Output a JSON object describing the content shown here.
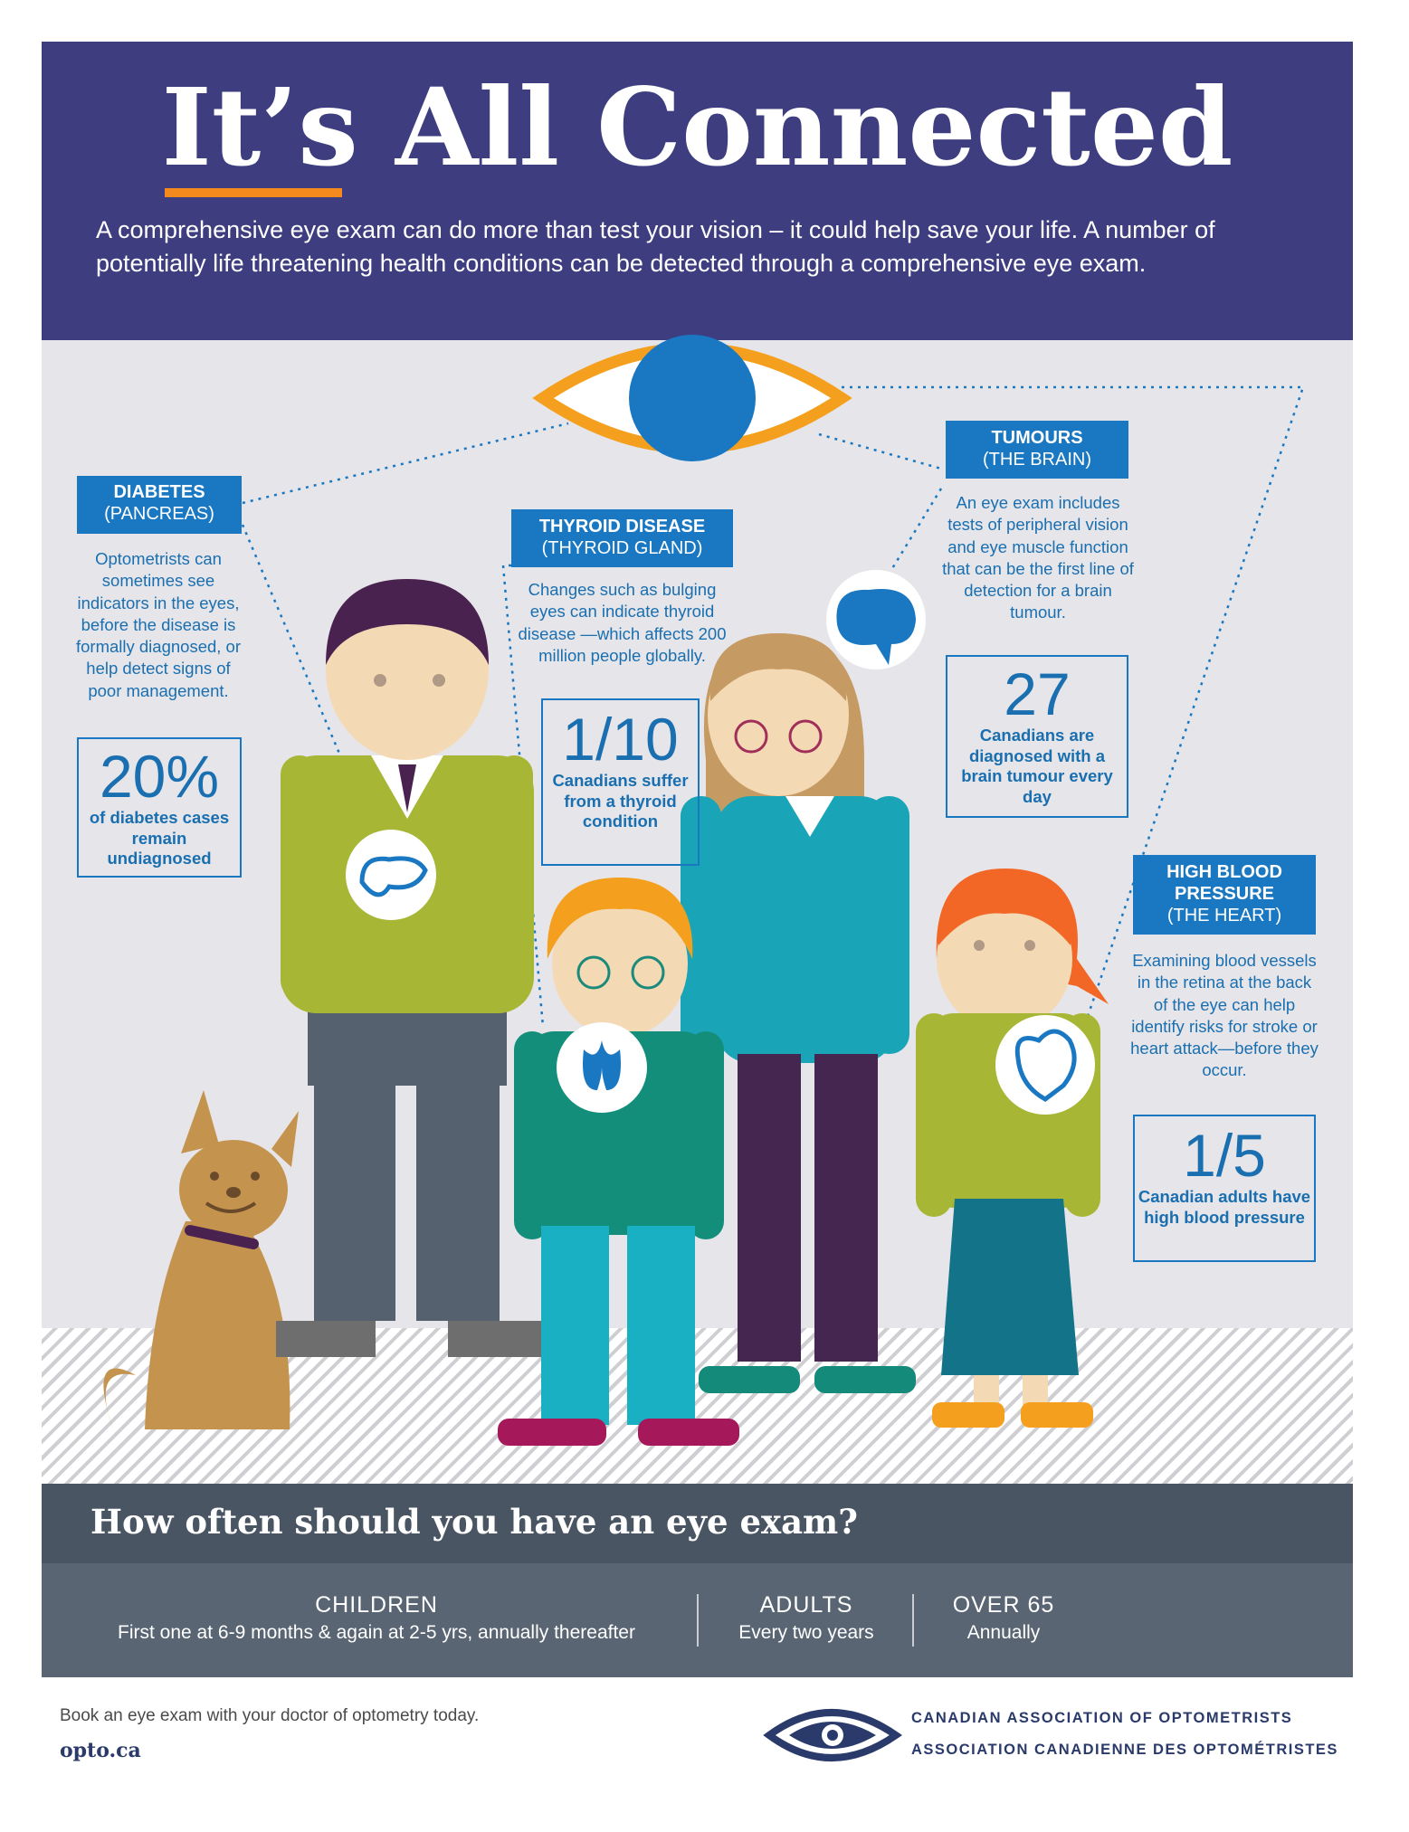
{
  "title": "It’s All Connected",
  "intro": "A comprehensive eye exam can do more than test your vision – it could help save your life. A number of potentially life threatening health conditions can be detected through a comprehensive eye exam.",
  "conditions": [
    {
      "label": "DIABETES",
      "organ": "(PANCREAS)",
      "description": "Optometrists can sometimes see indicators in the eyes, before the disease is formally diagnosed, or help detect signs of poor management.",
      "stat": "20%",
      "stat_caption": "of diabetes cases remain undiagnosed",
      "icon": "pancreas-icon"
    },
    {
      "label": "THYROID DISEASE",
      "organ": "(THYROID GLAND)",
      "description": "Changes such as bulging eyes can indicate thyroid disease —which affects 200 million people globally.",
      "stat": "1/10",
      "stat_caption": "Canadians suffer from a thyroid condition",
      "icon": "thyroid-icon"
    },
    {
      "label": "TUMOURS",
      "organ": "(THE BRAIN)",
      "description": "An eye exam includes tests of peripheral vision and eye muscle function that can be the first line of detection for a brain tumour.",
      "stat": "27",
      "stat_caption": "Canadians are diagnosed with a brain tumour every day",
      "icon": "brain-icon"
    },
    {
      "label": "HIGH BLOOD PRESSURE",
      "organ": "(THE HEART)",
      "description": "Examining blood vessels in the retina at the back of the eye can help identify risks for stroke or heart attack—before they occur.",
      "stat": "1/5",
      "stat_caption": "Canadian adults have high blood pressure",
      "icon": "heart-icon"
    }
  ],
  "frequency": {
    "heading": "How often should you have an eye exam?",
    "groups": [
      {
        "name": "CHILDREN",
        "detail": "First one at 6-9 months & again at 2-5 yrs, annually thereafter"
      },
      {
        "name": "ADULTS",
        "detail": "Every two years"
      },
      {
        "name": "OVER 65",
        "detail": "Annually"
      }
    ]
  },
  "footer": {
    "cta": "Book an eye exam with your doctor of optometry today.",
    "url": "opto.ca",
    "org_en": "CANADIAN ASSOCIATION OF OPTOMETRISTS",
    "org_fr": "ASSOCIATION CANADIENNE DES OPTOMÉTRISTES"
  },
  "colors": {
    "header": "#3d3d80",
    "accent": "#f48a1e",
    "blue": "#1a78c2",
    "band": "#4a5563"
  }
}
